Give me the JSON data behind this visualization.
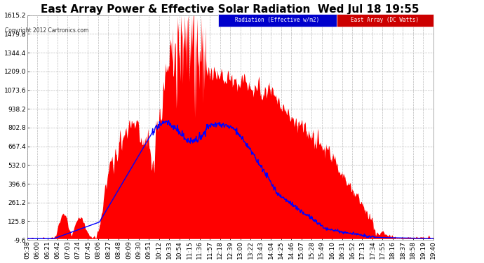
{
  "title": "East Array Power & Effective Solar Radiation  Wed Jul 18 19:55",
  "copyright": "Copyright 2012 Cartronics.com",
  "legend_labels": [
    "Radiation (Effective w/m2)",
    "East Array (DC Watts)"
  ],
  "legend_bg_colors": [
    "#0000cc",
    "#cc0000"
  ],
  "bg_color": "#ffffff",
  "plot_bg_color": "#ffffff",
  "grid_color": "#aaaaaa",
  "y_min": -9.6,
  "y_max": 1615.2,
  "y_ticks": [
    -9.6,
    125.8,
    261.2,
    396.6,
    532.0,
    667.4,
    802.8,
    938.2,
    1073.6,
    1209.0,
    1344.4,
    1479.8,
    1615.2
  ],
  "title_color": "#000000",
  "title_fontsize": 11,
  "tick_color": "#000000",
  "tick_fontsize": 6.5,
  "xlabel_rotation": 90,
  "red_color": "#ff0000",
  "blue_color": "#0000ff",
  "x_tick_labels": [
    "05:38",
    "06:00",
    "06:21",
    "06:42",
    "07:03",
    "07:24",
    "07:45",
    "08:06",
    "08:27",
    "08:48",
    "09:09",
    "09:30",
    "09:51",
    "10:12",
    "10:33",
    "10:54",
    "11:15",
    "11:36",
    "11:57",
    "12:18",
    "12:39",
    "13:00",
    "13:22",
    "13:43",
    "14:04",
    "14:25",
    "14:46",
    "15:07",
    "15:28",
    "15:49",
    "16:10",
    "16:31",
    "16:52",
    "17:13",
    "17:34",
    "17:55",
    "18:16",
    "18:37",
    "18:58",
    "19:19",
    "19:40"
  ]
}
